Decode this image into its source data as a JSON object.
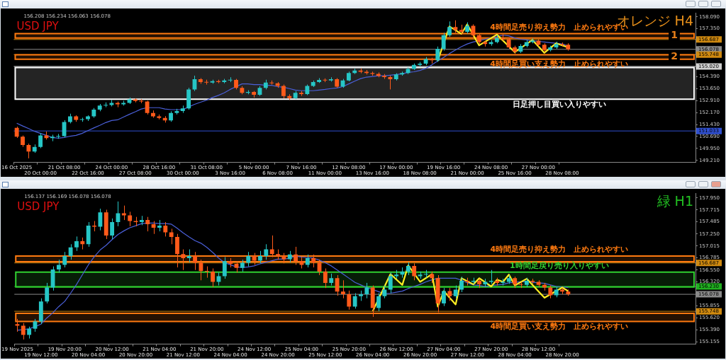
{
  "chart_data": [
    {
      "type": "candlestick",
      "title": "USD JPY",
      "subtitle": "オレンジ H4",
      "categories": [
        "16 Oct 2025",
        null,
        null,
        null,
        "20 Oct 00:00",
        null,
        null,
        null,
        "21 Oct 08:00",
        null,
        null,
        null,
        "22 Oct 16:00",
        null,
        null,
        null,
        "24 Oct 00:00",
        null,
        null,
        null,
        "27 Oct 08:00",
        null,
        null,
        null,
        "28 Oct 16:00",
        null,
        null,
        null,
        "30 Oct 00:00",
        null,
        null,
        null,
        "31 Oct 08:00",
        null,
        null,
        null,
        "3 Nov 16:00",
        null,
        null,
        null,
        "5 Nov 00:00",
        null,
        null,
        null,
        "6 Nov 08:00",
        null,
        null,
        null,
        "7 Nov 16:00",
        null,
        null,
        null,
        "11 Nov 00:00",
        null,
        null,
        null,
        "12 Nov 08:00",
        null,
        null,
        null,
        "13 Nov 16:00",
        null,
        null,
        null,
        "17 Nov 00:00",
        null,
        null,
        null,
        "18 Nov 08:00",
        null,
        null,
        null,
        "19 Nov 16:00",
        null,
        null,
        null,
        "21 Nov 00:00",
        null,
        null,
        null,
        "24 Nov 08:00",
        null,
        null,
        null,
        "25 Nov 16:00",
        null,
        null,
        null,
        "27 Nov 00:00",
        null,
        null,
        null,
        "28 Nov 08:00",
        null,
        null,
        null,
        null,
        null,
        null,
        null,
        null,
        null,
        null,
        null,
        null,
        null,
        null,
        null,
        null,
        null,
        null,
        null,
        null,
        null,
        null
      ],
      "ohlc": [
        [
          151.22,
          151.3,
          150.6,
          150.68
        ],
        [
          150.68,
          150.75,
          150.05,
          150.17
        ],
        [
          150.17,
          150.25,
          149.34,
          149.76
        ],
        [
          149.76,
          150.2,
          149.68,
          150.05
        ],
        [
          150.05,
          150.9,
          149.97,
          150.76
        ],
        [
          150.76,
          151.0,
          150.5,
          150.59
        ],
        [
          150.59,
          150.8,
          150.4,
          150.68
        ],
        [
          150.68,
          150.85,
          150.55,
          150.71
        ],
        [
          150.71,
          151.7,
          150.65,
          151.59
        ],
        [
          151.59,
          152.1,
          151.5,
          151.93
        ],
        [
          151.93,
          152.0,
          151.6,
          151.72
        ],
        [
          151.72,
          151.85,
          151.6,
          151.76
        ],
        [
          151.76,
          152.0,
          151.65,
          151.93
        ],
        [
          151.93,
          152.45,
          151.85,
          152.35
        ],
        [
          152.35,
          152.7,
          152.25,
          152.6
        ],
        [
          152.6,
          152.8,
          152.5,
          152.64
        ],
        [
          152.64,
          152.95,
          152.55,
          152.77
        ],
        [
          152.77,
          152.85,
          152.5,
          152.68
        ],
        [
          152.68,
          152.9,
          152.6,
          152.77
        ],
        [
          152.77,
          153.1,
          152.7,
          152.98
        ],
        [
          152.98,
          153.05,
          152.8,
          152.89
        ],
        [
          152.89,
          153.0,
          152.75,
          152.85
        ],
        [
          152.85,
          152.9,
          152.05,
          152.14
        ],
        [
          152.14,
          152.3,
          151.85,
          151.93
        ],
        [
          151.93,
          152.05,
          151.75,
          151.84
        ],
        [
          151.84,
          151.95,
          151.55,
          151.68
        ],
        [
          151.68,
          152.25,
          151.6,
          152.14
        ],
        [
          152.14,
          152.4,
          152.05,
          152.26
        ],
        [
          152.26,
          152.6,
          152.15,
          152.43
        ],
        [
          152.43,
          153.7,
          152.35,
          153.6
        ],
        [
          153.6,
          154.45,
          153.5,
          154.23
        ],
        [
          154.23,
          154.3,
          153.95,
          154.06
        ],
        [
          154.06,
          154.2,
          153.9,
          154.02
        ],
        [
          154.02,
          154.2,
          153.95,
          154.11
        ],
        [
          154.11,
          154.2,
          153.98,
          154.06
        ],
        [
          154.06,
          154.25,
          153.98,
          154.15
        ],
        [
          154.15,
          154.35,
          154.05,
          154.19
        ],
        [
          154.19,
          154.25,
          153.6,
          153.69
        ],
        [
          153.69,
          153.8,
          153.3,
          153.39
        ],
        [
          153.39,
          153.55,
          153.3,
          153.44
        ],
        [
          153.44,
          153.5,
          153.1,
          153.27
        ],
        [
          153.27,
          153.8,
          153.2,
          153.69
        ],
        [
          153.69,
          154.2,
          153.6,
          154.02
        ],
        [
          154.02,
          154.15,
          153.9,
          153.98
        ],
        [
          153.98,
          154.05,
          153.7,
          153.81
        ],
        [
          153.81,
          153.9,
          153.05,
          153.19
        ],
        [
          153.19,
          153.3,
          152.95,
          153.06
        ],
        [
          153.06,
          153.5,
          153.0,
          153.39
        ],
        [
          153.39,
          153.5,
          153.2,
          153.31
        ],
        [
          153.31,
          153.9,
          153.25,
          153.81
        ],
        [
          153.81,
          154.15,
          153.75,
          154.06
        ],
        [
          154.06,
          154.3,
          154.0,
          154.19
        ],
        [
          154.19,
          154.28,
          154.05,
          154.15
        ],
        [
          154.15,
          154.35,
          154.08,
          154.23
        ],
        [
          154.23,
          154.3,
          153.7,
          153.77
        ],
        [
          153.77,
          154.25,
          153.7,
          154.15
        ],
        [
          154.15,
          154.7,
          154.1,
          154.61
        ],
        [
          154.61,
          154.88,
          154.55,
          154.77
        ],
        [
          154.77,
          154.9,
          154.6,
          154.69
        ],
        [
          154.69,
          154.8,
          154.52,
          154.61
        ],
        [
          154.61,
          154.7,
          154.45,
          154.56
        ],
        [
          154.56,
          154.65,
          154.35,
          154.44
        ],
        [
          154.44,
          154.55,
          154.25,
          154.36
        ],
        [
          154.36,
          154.45,
          153.6,
          154.23
        ],
        [
          154.23,
          154.6,
          154.15,
          154.52
        ],
        [
          154.52,
          154.7,
          154.45,
          154.61
        ],
        [
          154.61,
          154.95,
          154.55,
          154.86
        ],
        [
          154.86,
          155.2,
          154.8,
          155.11
        ],
        [
          155.11,
          155.3,
          155.0,
          155.19
        ],
        [
          155.19,
          155.6,
          155.1,
          155.48
        ],
        [
          155.48,
          155.55,
          155.2,
          155.4
        ],
        [
          155.4,
          156.25,
          155.3,
          156.11
        ],
        [
          156.11,
          157.1,
          156.0,
          156.95
        ],
        [
          156.95,
          157.8,
          156.85,
          157.45
        ],
        [
          157.45,
          157.87,
          157.1,
          157.28
        ],
        [
          157.28,
          157.6,
          157.0,
          157.16
        ],
        [
          157.16,
          157.75,
          157.05,
          157.53
        ],
        [
          157.53,
          157.62,
          156.85,
          156.95
        ],
        [
          156.95,
          157.05,
          156.4,
          156.53
        ],
        [
          156.53,
          156.6,
          156.25,
          156.41
        ],
        [
          156.41,
          156.65,
          156.3,
          156.53
        ],
        [
          156.53,
          156.95,
          156.45,
          156.78
        ],
        [
          156.78,
          157.0,
          156.6,
          156.7
        ],
        [
          156.7,
          156.8,
          156.1,
          156.2
        ],
        [
          156.2,
          156.3,
          155.8,
          155.94
        ],
        [
          155.94,
          156.4,
          155.85,
          156.28
        ],
        [
          156.28,
          156.65,
          156.2,
          156.53
        ],
        [
          156.53,
          156.75,
          156.45,
          156.61
        ],
        [
          156.61,
          156.7,
          156.25,
          156.36
        ],
        [
          156.36,
          156.45,
          155.9,
          156.03
        ],
        [
          156.03,
          156.3,
          155.95,
          156.2
        ],
        [
          156.2,
          156.55,
          156.1,
          156.41
        ],
        [
          156.41,
          156.5,
          156.25,
          156.36
        ],
        [
          156.36,
          156.45,
          156.0,
          156.08
        ],
        null,
        null,
        null,
        null,
        null,
        null,
        null,
        null,
        null,
        null,
        null,
        null,
        null,
        null,
        null,
        null,
        null,
        null,
        null,
        null,
        null
      ],
      "series": [
        {
          "type": "line",
          "color": "#4a5fd8",
          "values": [
            151.51,
            151.34,
            151.18,
            151.01,
            150.88,
            150.76,
            150.63,
            150.59,
            150.63,
            150.71,
            150.76,
            150.88,
            151.05,
            151.22,
            151.38,
            151.55,
            151.68,
            151.72,
            151.89,
            152.06,
            152.22,
            152.39,
            152.47,
            152.47,
            152.47,
            152.39,
            152.35,
            152.35,
            152.35,
            152.52,
            152.68,
            152.81,
            152.93,
            153.1,
            153.23,
            153.39,
            153.6,
            153.77,
            153.94,
            153.94,
            153.9,
            153.9,
            153.85,
            153.85,
            153.77,
            153.73,
            153.65,
            153.56,
            153.52,
            153.52,
            153.52,
            153.56,
            153.6,
            153.65,
            153.69,
            153.77,
            153.94,
            154.11,
            154.27,
            154.36,
            154.4,
            154.44,
            154.44,
            154.48,
            154.52,
            154.56,
            154.65,
            154.69,
            154.77,
            154.9,
            155.11,
            155.36,
            155.57,
            155.82,
            156.03,
            156.24,
            156.41,
            156.53,
            156.61,
            156.7,
            156.78,
            156.86,
            156.95,
            156.91,
            156.78,
            156.7,
            156.66,
            156.61,
            156.57,
            156.53,
            156.49,
            156.45,
            156.41,
            156.28,
            null,
            null,
            null,
            null,
            null,
            null,
            null,
            null,
            null,
            null,
            null,
            null,
            null,
            null,
            null,
            null,
            null,
            null,
            null,
            null,
            null
          ]
        },
        {
          "type": "line",
          "color": "#ffee22",
          "values": [
            null,
            null,
            null,
            null,
            null,
            null,
            null,
            null,
            null,
            null,
            null,
            null,
            null,
            null,
            null,
            null,
            null,
            null,
            null,
            null,
            null,
            null,
            null,
            null,
            null,
            null,
            null,
            null,
            null,
            null,
            null,
            null,
            null,
            null,
            null,
            null,
            null,
            null,
            null,
            null,
            null,
            null,
            null,
            null,
            null,
            null,
            null,
            null,
            null,
            null,
            null,
            null,
            null,
            null,
            null,
            null,
            null,
            null,
            null,
            null,
            null,
            null,
            null,
            null,
            null,
            null,
            null,
            null,
            null,
            null,
            null,
            155.36,
            null,
            157.49,
            null,
            157.03,
            157.62,
            null,
            156.32,
            null,
            null,
            156.99,
            null,
            null,
            155.9,
            null,
            null,
            156.66,
            null,
            155.86,
            null,
            156.45,
            null,
            156.2,
            null,
            null,
            null,
            null,
            null,
            null,
            null,
            null,
            null,
            null,
            null,
            null,
            null,
            null,
            null,
            null,
            null,
            null,
            null,
            null,
            null
          ]
        }
      ],
      "ylim": [
        149.09,
        158.33
      ],
      "yticks": [
        {
          "value": 158.09,
          "label": "158.090"
        },
        {
          "value": 157.35,
          "label": "157.350"
        },
        {
          "value": 154.39,
          "label": "154.390"
        },
        {
          "value": 153.65,
          "label": "153.650"
        },
        {
          "value": 152.91,
          "label": "152.910"
        },
        {
          "value": 152.17,
          "label": "152.170"
        },
        {
          "value": 151.43,
          "label": "151.430"
        },
        {
          "value": 150.69,
          "label": "150.690"
        },
        {
          "value": 149.95,
          "label": "149.950"
        },
        {
          "value": 149.21,
          "label": "149.210"
        }
      ],
      "ref_lines": [
        {
          "axis": "y",
          "value": 156.687,
          "label": "156.687",
          "color": "#d08a10"
        },
        {
          "axis": "y",
          "value": 156.078,
          "label": "156.078",
          "color": "#8a8a8a"
        },
        {
          "axis": "y",
          "value": 155.748,
          "label": "155.748",
          "color": "#d08a10"
        },
        {
          "axis": "y",
          "value": 155.02,
          "label": "155.020",
          "color": "#d0d0d0"
        },
        {
          "axis": "y",
          "value": 151.033,
          "label": "151.033",
          "color": "#3050d0"
        }
      ],
      "bands": [
        {
          "axis": "y",
          "from": 156.78,
          "to": 157.05,
          "label": "4時間足売り抑え勢力　止められやすい",
          "color": "#ff7a10"
        },
        {
          "axis": "y",
          "from": 155.46,
          "to": 155.74,
          "label": "4時間足買い支え勢力　止められやすい",
          "color": "#ff7a10"
        },
        {
          "axis": "y",
          "from": 153.0,
          "to": 154.95,
          "label": "日足押し目買い入りやすい",
          "color": "#ffffff"
        }
      ],
      "annotations": [
        "156.208 156.234 156.063 156.078",
        "1",
        "2"
      ],
      "legend": false,
      "grid": false,
      "marker": "none"
    },
    {
      "type": "candlestick",
      "title": "USD JPY",
      "subtitle": "緑 H1",
      "categories": [
        "19 Nov 2025",
        null,
        null,
        null,
        "19 Nov 12:00",
        null,
        null,
        null,
        "19 Nov 20:00",
        null,
        null,
        null,
        "20 Nov 04:00",
        null,
        null,
        null,
        "20 Nov 12:00",
        null,
        null,
        null,
        "20 Nov 20:00",
        null,
        null,
        null,
        "21 Nov 04:00",
        null,
        null,
        null,
        "21 Nov 12:00",
        null,
        null,
        null,
        "21 Nov 20:00",
        null,
        null,
        null,
        "24 Nov 04:00",
        null,
        null,
        null,
        "24 Nov 12:00",
        null,
        null,
        null,
        "24 Nov 20:00",
        null,
        null,
        null,
        "25 Nov 04:00",
        null,
        null,
        null,
        "25 Nov 12:00",
        null,
        null,
        null,
        "25 Nov 20:00",
        null,
        null,
        null,
        "26 Nov 04:00",
        null,
        null,
        null,
        "26 Nov 12:00",
        null,
        null,
        null,
        "26 Nov 20:00",
        null,
        null,
        null,
        "27 Nov 04:00",
        null,
        null,
        null,
        "27 Nov 12:00",
        null,
        null,
        null,
        "27 Nov 20:00",
        null,
        null,
        null,
        "28 Nov 04:00",
        null,
        null,
        null,
        "28 Nov 12:00",
        null,
        null,
        null,
        "28 Nov 20:00",
        null,
        null,
        null,
        null,
        null,
        null,
        null,
        null,
        null,
        null,
        null,
        null,
        null,
        null,
        null,
        null,
        null,
        null,
        null,
        null,
        null,
        null
      ],
      "ohlc": [
        [
          155.5,
          155.6,
          155.35,
          155.47
        ],
        [
          155.47,
          155.52,
          155.2,
          155.29
        ],
        [
          155.29,
          155.45,
          155.22,
          155.41
        ],
        [
          155.41,
          155.6,
          155.35,
          155.55
        ],
        [
          155.55,
          156.0,
          155.5,
          155.94
        ],
        [
          155.94,
          156.3,
          155.9,
          156.21
        ],
        [
          156.21,
          156.62,
          156.15,
          156.56
        ],
        [
          156.56,
          156.75,
          156.5,
          156.65
        ],
        [
          156.65,
          156.9,
          156.6,
          156.82
        ],
        [
          156.82,
          157.05,
          156.75,
          156.99
        ],
        [
          156.99,
          157.2,
          156.92,
          157.11
        ],
        [
          157.11,
          157.18,
          156.95,
          157.05
        ],
        [
          157.05,
          157.48,
          157.0,
          157.41
        ],
        [
          157.41,
          157.5,
          157.3,
          157.39
        ],
        [
          157.39,
          157.74,
          157.32,
          157.67
        ],
        [
          157.67,
          157.72,
          157.15,
          157.22
        ],
        [
          157.22,
          157.55,
          157.15,
          157.48
        ],
        [
          157.48,
          157.88,
          157.4,
          157.65
        ],
        [
          157.65,
          157.8,
          157.52,
          157.61
        ],
        [
          157.61,
          157.68,
          157.4,
          157.5
        ],
        [
          157.5,
          157.58,
          157.4,
          157.48
        ],
        [
          157.48,
          157.6,
          157.42,
          157.52
        ],
        [
          157.52,
          157.58,
          157.3,
          157.44
        ],
        [
          157.44,
          157.5,
          157.25,
          157.37
        ],
        [
          157.37,
          157.52,
          157.3,
          157.41
        ],
        [
          157.41,
          157.48,
          157.2,
          157.28
        ],
        [
          157.28,
          157.35,
          157.05,
          157.19
        ],
        [
          157.19,
          157.25,
          156.6,
          156.86
        ],
        [
          156.86,
          156.95,
          156.55,
          156.78
        ],
        [
          156.78,
          156.95,
          156.7,
          156.82
        ],
        [
          156.82,
          156.9,
          156.55,
          156.69
        ],
        [
          156.69,
          156.75,
          156.35,
          156.53
        ],
        [
          156.53,
          156.62,
          156.4,
          156.52
        ],
        [
          156.52,
          156.58,
          156.22,
          156.32
        ],
        [
          156.32,
          156.5,
          156.25,
          156.43
        ],
        [
          156.43,
          156.8,
          156.38,
          156.72
        ],
        [
          156.72,
          156.78,
          156.6,
          156.67
        ],
        [
          156.67,
          156.72,
          156.5,
          156.59
        ],
        [
          156.59,
          156.75,
          156.52,
          156.69
        ],
        [
          156.69,
          156.9,
          156.62,
          156.82
        ],
        [
          156.82,
          156.88,
          156.65,
          156.73
        ],
        [
          156.73,
          156.92,
          156.68,
          156.82
        ],
        [
          156.82,
          157.05,
          156.75,
          156.95
        ],
        [
          156.95,
          157.22,
          156.8,
          156.86
        ],
        [
          156.86,
          156.95,
          156.75,
          156.82
        ],
        [
          156.82,
          156.88,
          156.68,
          156.76
        ],
        [
          156.76,
          156.92,
          156.7,
          156.85
        ],
        [
          156.85,
          157.0,
          156.65,
          156.72
        ],
        [
          156.72,
          156.8,
          156.58,
          156.65
        ],
        [
          156.65,
          156.85,
          156.6,
          156.78
        ],
        [
          156.78,
          156.85,
          156.6,
          156.69
        ],
        [
          156.69,
          156.75,
          156.45,
          156.52
        ],
        [
          156.52,
          156.58,
          156.2,
          156.3
        ],
        [
          156.3,
          156.48,
          156.25,
          156.39
        ],
        [
          156.39,
          156.45,
          156.05,
          156.13
        ],
        [
          156.13,
          156.35,
          156.0,
          156.08
        ],
        [
          156.08,
          156.15,
          155.78,
          155.84
        ],
        [
          155.84,
          156.1,
          155.8,
          156.04
        ],
        [
          156.04,
          156.15,
          155.95,
          156.08
        ],
        [
          156.08,
          156.3,
          156.0,
          156.21
        ],
        [
          156.21,
          156.25,
          155.64,
          155.81
        ],
        [
          155.81,
          156.1,
          155.75,
          156.04
        ],
        [
          156.04,
          156.25,
          156.0,
          156.17
        ],
        [
          156.17,
          156.5,
          156.1,
          156.43
        ],
        [
          156.43,
          156.55,
          156.38,
          156.46
        ],
        [
          156.46,
          156.6,
          156.4,
          156.52
        ],
        [
          156.52,
          156.7,
          156.45,
          156.63
        ],
        [
          156.63,
          156.68,
          156.35,
          156.43
        ],
        [
          156.43,
          156.52,
          156.38,
          156.46
        ],
        [
          156.46,
          156.55,
          156.4,
          156.47
        ],
        [
          156.47,
          156.52,
          156.3,
          156.39
        ],
        [
          156.39,
          156.45,
          155.73,
          155.9
        ],
        [
          155.9,
          156.2,
          155.85,
          156.14
        ],
        [
          156.14,
          156.2,
          155.95,
          156.04
        ],
        [
          156.04,
          156.25,
          156.0,
          156.17
        ],
        [
          156.17,
          156.42,
          156.12,
          156.34
        ],
        [
          156.34,
          156.4,
          156.25,
          156.32
        ],
        [
          156.32,
          156.4,
          156.28,
          156.34
        ],
        [
          156.34,
          156.38,
          156.2,
          156.27
        ],
        [
          156.27,
          156.38,
          156.22,
          156.32
        ],
        [
          156.32,
          156.55,
          156.28,
          156.34
        ],
        [
          156.34,
          156.4,
          156.25,
          156.3
        ],
        [
          156.3,
          156.38,
          156.25,
          156.32
        ],
        [
          156.32,
          156.45,
          156.28,
          156.39
        ],
        [
          156.39,
          156.42,
          156.2,
          156.27
        ],
        [
          156.27,
          156.32,
          156.2,
          156.26
        ],
        [
          156.26,
          156.4,
          156.22,
          156.34
        ],
        [
          156.34,
          156.38,
          156.28,
          156.32
        ],
        [
          156.32,
          156.35,
          156.22,
          156.26
        ],
        [
          156.26,
          156.3,
          156.15,
          156.21
        ],
        [
          156.21,
          156.25,
          156.0,
          156.06
        ],
        [
          156.06,
          156.22,
          156.02,
          156.17
        ],
        [
          156.17,
          156.2,
          156.08,
          156.13
        ],
        [
          156.13,
          156.17,
          156.05,
          156.08
        ],
        null,
        null,
        null,
        null,
        null,
        null,
        null,
        null,
        null,
        null,
        null,
        null,
        null,
        null,
        null,
        null,
        null,
        null,
        null,
        null,
        null
      ],
      "series": [
        {
          "type": "line",
          "color": "#4a5fd8",
          "values": [
            155.38,
            155.39,
            155.41,
            155.45,
            155.5,
            155.62,
            155.72,
            155.84,
            155.94,
            156.1,
            156.27,
            156.46,
            156.65,
            156.81,
            156.94,
            157.03,
            157.14,
            157.24,
            157.31,
            157.37,
            157.41,
            157.45,
            157.46,
            157.46,
            157.45,
            157.45,
            157.44,
            157.36,
            157.27,
            157.19,
            157.12,
            157.07,
            156.99,
            156.89,
            156.78,
            156.69,
            156.65,
            156.61,
            156.6,
            156.61,
            156.63,
            156.67,
            156.7,
            156.73,
            156.76,
            156.76,
            156.78,
            156.82,
            156.8,
            156.79,
            156.78,
            156.74,
            156.69,
            156.63,
            156.55,
            156.47,
            156.39,
            156.31,
            156.26,
            156.21,
            156.17,
            156.13,
            156.09,
            156.1,
            156.12,
            156.14,
            156.19,
            156.23,
            156.27,
            156.32,
            156.36,
            156.39,
            156.39,
            156.39,
            156.39,
            156.35,
            156.3,
            156.26,
            156.25,
            156.23,
            156.25,
            156.26,
            156.27,
            156.3,
            156.31,
            156.32,
            156.32,
            156.31,
            156.3,
            156.29,
            156.26,
            156.23,
            156.22,
            156.21,
            null,
            null,
            null,
            null,
            null,
            null,
            null,
            null,
            null,
            null,
            null,
            null,
            null,
            null,
            null,
            null,
            null,
            null,
            null,
            null,
            null
          ]
        },
        {
          "type": "line",
          "color": "#ffee22",
          "values": [
            null,
            null,
            null,
            null,
            null,
            null,
            null,
            null,
            null,
            null,
            null,
            null,
            null,
            null,
            null,
            null,
            null,
            null,
            null,
            null,
            null,
            null,
            null,
            null,
            null,
            null,
            null,
            null,
            null,
            null,
            null,
            null,
            null,
            null,
            null,
            null,
            null,
            null,
            null,
            null,
            null,
            null,
            null,
            null,
            null,
            null,
            null,
            null,
            null,
            null,
            null,
            null,
            null,
            null,
            null,
            null,
            null,
            null,
            null,
            null,
            155.75,
            null,
            null,
            156.47,
            null,
            156.26,
            156.64,
            null,
            156.32,
            null,
            156.47,
            155.84,
            156.14,
            null,
            155.88,
            156.39,
            null,
            156.27,
            156.39,
            null,
            156.23,
            156.36,
            156.32,
            156.46,
            156.25,
            null,
            156.38,
            null,
            null,
            156.01,
            null,
            null,
            156.21,
            156.14,
            null,
            null,
            null,
            null,
            null,
            null,
            null,
            null,
            null,
            null,
            null,
            null,
            null,
            null,
            null,
            null,
            null,
            null,
            null,
            null,
            null
          ]
        }
      ],
      "ylim": [
        155.11,
        158.04
      ],
      "yticks": [
        {
          "value": 157.95,
          "label": "157.950"
        },
        {
          "value": 157.715,
          "label": "157.715"
        },
        {
          "value": 157.485,
          "label": "157.485"
        },
        {
          "value": 157.25,
          "label": "157.250"
        },
        {
          "value": 157.015,
          "label": "157.015"
        },
        {
          "value": 156.785,
          "label": "156.785"
        },
        {
          "value": 156.55,
          "label": "156.550"
        },
        {
          "value": 156.32,
          "label": "156.320"
        },
        {
          "value": 155.855,
          "label": "155.855"
        },
        {
          "value": 155.62,
          "label": "155.620"
        },
        {
          "value": 155.39,
          "label": "155.390"
        },
        {
          "value": 155.155,
          "label": "155.155"
        }
      ],
      "ref_lines": [
        {
          "axis": "y",
          "value": 156.687,
          "label": "156.687",
          "color": "#d08a10"
        },
        {
          "axis": "y",
          "value": 156.23,
          "label": "156.230",
          "color": "#20b020"
        },
        {
          "axis": "y",
          "value": 156.078,
          "label": "156.078",
          "color": "#8a8a8a"
        },
        {
          "axis": "y",
          "value": 155.748,
          "label": "155.748",
          "color": "#d08a10"
        }
      ],
      "bands": [
        {
          "axis": "y",
          "from": 156.71,
          "to": 156.82,
          "label": "4時間足売り抑え勢力　止められやすい",
          "color": "#ff7a10"
        },
        {
          "axis": "y",
          "from": 156.22,
          "to": 156.51,
          "label": "1時間足戻り売り入りやすい",
          "color": "#30d030"
        },
        {
          "axis": "y",
          "from": 155.55,
          "to": 155.71,
          "label": "4時間足買い支え勢力　止められやすい",
          "color": "#ff7a10"
        }
      ],
      "annotations": [
        "156.137 156.169 156.078 156.078"
      ],
      "legend": false,
      "grid": false,
      "marker": "none"
    }
  ]
}
